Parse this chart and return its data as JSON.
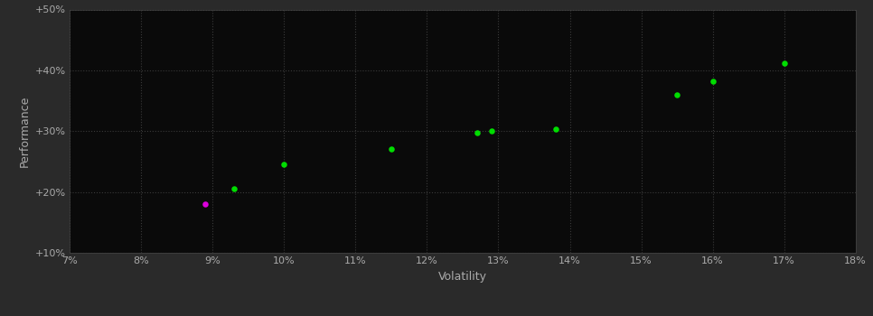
{
  "background_color": "#2a2a2a",
  "plot_bg_color": "#0a0a0a",
  "grid_color": "#3a3a3a",
  "text_color": "#aaaaaa",
  "xlabel": "Volatility",
  "ylabel": "Performance",
  "xlim": [
    0.07,
    0.18
  ],
  "ylim": [
    0.1,
    0.5
  ],
  "xticks": [
    0.07,
    0.08,
    0.09,
    0.1,
    0.11,
    0.12,
    0.13,
    0.14,
    0.15,
    0.16,
    0.17,
    0.18
  ],
  "yticks": [
    0.1,
    0.2,
    0.3,
    0.4,
    0.5
  ],
  "ytick_labels": [
    "+10%",
    "+20%",
    "+30%",
    "+40%",
    "+50%"
  ],
  "xtick_labels": [
    "7%",
    "8%",
    "9%",
    "10%",
    "11%",
    "12%",
    "13%",
    "14%",
    "15%",
    "16%",
    "17%",
    "18%"
  ],
  "green_points": [
    [
      0.093,
      0.205
    ],
    [
      0.1,
      0.245
    ],
    [
      0.115,
      0.27
    ],
    [
      0.127,
      0.298
    ],
    [
      0.129,
      0.3
    ],
    [
      0.138,
      0.303
    ],
    [
      0.155,
      0.36
    ],
    [
      0.16,
      0.382
    ],
    [
      0.17,
      0.412
    ]
  ],
  "magenta_points": [
    [
      0.089,
      0.18
    ]
  ],
  "green_color": "#00dd00",
  "magenta_color": "#dd00dd",
  "marker_size": 22
}
